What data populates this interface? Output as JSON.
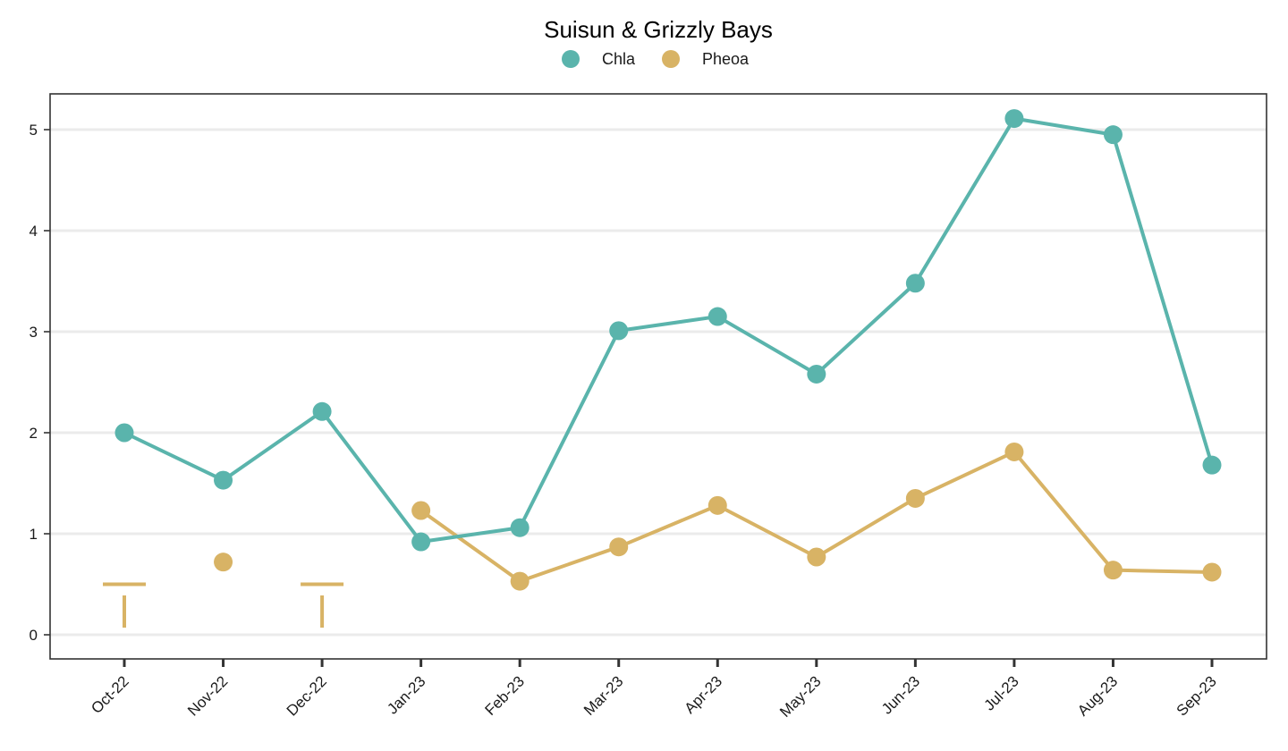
{
  "chart_data": {
    "type": "line",
    "title": "Suisun & Grizzly Bays",
    "xlabel": "",
    "ylabel": "",
    "categories": [
      "Oct-22",
      "Nov-22",
      "Dec-22",
      "Jan-23",
      "Feb-23",
      "Mar-23",
      "Apr-23",
      "May-23",
      "Jun-23",
      "Jul-23",
      "Aug-23",
      "Sep-23"
    ],
    "yticks": [
      "0",
      "1",
      "2",
      "3",
      "4",
      "5"
    ],
    "ylim": [
      -0.25,
      5.35
    ],
    "grid": "horizontal-major",
    "legend": "top",
    "series": [
      {
        "name": "Chla",
        "color": "#5AB4AC",
        "values": [
          2.0,
          1.53,
          2.21,
          0.92,
          1.06,
          3.01,
          3.15,
          2.58,
          3.48,
          5.11,
          4.95,
          1.68
        ]
      },
      {
        "name": "Pheoa",
        "color": "#D8B365",
        "values": [
          null,
          0.72,
          null,
          1.23,
          0.53,
          0.87,
          1.28,
          0.77,
          1.35,
          1.81,
          0.64,
          0.62
        ],
        "below_detection": [
          {
            "index": 0,
            "limit": 0.5
          },
          {
            "index": 2,
            "limit": 0.5
          }
        ]
      }
    ]
  }
}
